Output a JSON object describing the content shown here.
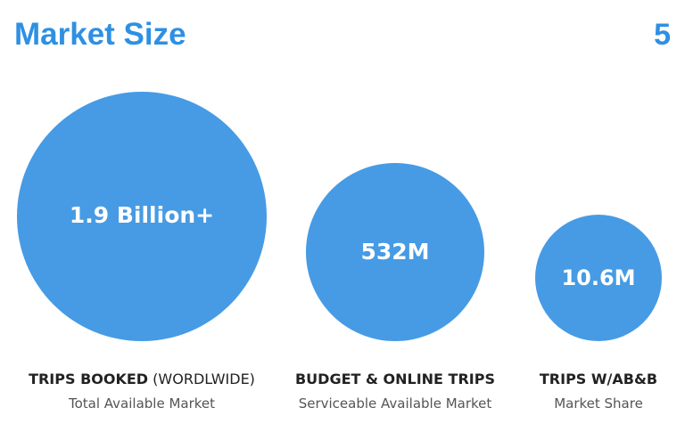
{
  "header": {
    "title": "Market Size",
    "page_number": "5"
  },
  "items": [
    {
      "value": "1.9 Billion+",
      "label_bold": "TRIPS BOOKED",
      "label_rest": "(WORDLWIDE)",
      "sublabel": "Total Available Market"
    },
    {
      "value": "532M",
      "label_bold": "BUDGET & ONLINE TRIPS",
      "sublabel": "Serviceable Available Market"
    },
    {
      "value": "10.6M",
      "label_bold": "TRIPS W/AB&B",
      "sublabel": "Market Share"
    }
  ]
}
